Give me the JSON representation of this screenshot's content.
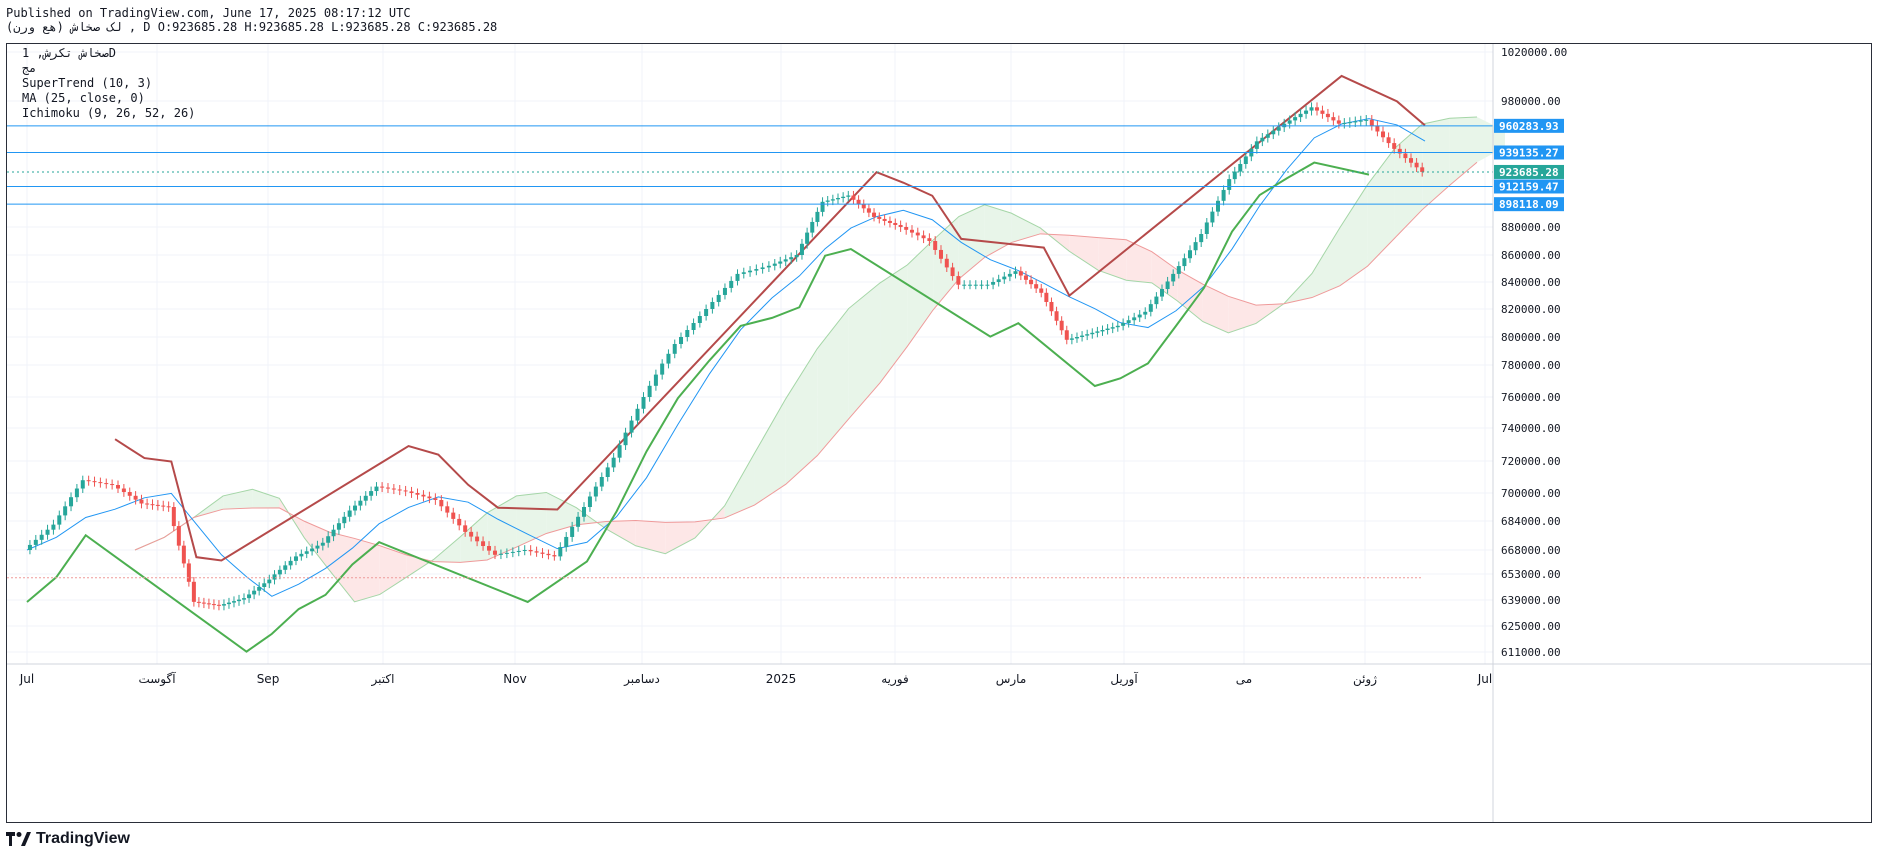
{
  "header": {
    "published": "Published on TradingView.com, June 17, 2025 08:17:12 UTC",
    "ohlc": "لک صخاش (هع ورن) , D O:923685.28 H:923685.28 L:923685.28 C:923685.28"
  },
  "legend": {
    "symbol": "صخاش تکرش, 1D",
    "sub": "مج",
    "supertrend": "SuperTrend (10, 3)",
    "ma": "MA (25, close, 0)",
    "ichimoku": "Ichimoku (9, 26, 52, 26)"
  },
  "brand": {
    "logo_text": "TradingView"
  },
  "colors": {
    "up": "#26a69a",
    "down": "#ef5350",
    "supertrend_up": "#4caf50",
    "supertrend_down": "#b54a4a",
    "ma": "#2196f3",
    "level_line": "#2196f3",
    "cloud_bull": "#e8f5e9",
    "cloud_bear": "#fde7e7",
    "price_label": "#26a69a"
  },
  "chart_data": {
    "type": "candlestick",
    "y_axis": {
      "range": [
        605000,
        1032000
      ],
      "ticks": [
        "1020000.00",
        "980000.00",
        "880000.00",
        "860000.00",
        "840000.00",
        "820000.00",
        "800000.00",
        "780000.00",
        "760000.00",
        "740000.00",
        "720000.00",
        "700000.00",
        "684000.00",
        "668000.00",
        "653000.00",
        "639000.00",
        "625000.00",
        "611000.00"
      ],
      "tick_values": [
        1020000,
        980000,
        880000,
        860000,
        840000,
        820000,
        800000,
        780000,
        760000,
        740000,
        720000,
        700000,
        684000,
        668000,
        653000,
        639000,
        625000,
        611000
      ]
    },
    "x_axis": {
      "labels": [
        "Jul",
        "آگوست",
        "Sep",
        "اکتبر",
        "Nov",
        "دسامبر",
        "2025",
        "فوریه",
        "مارس",
        "آوریل",
        "می",
        "ژوئن",
        "Jul"
      ],
      "dates": [
        "2024-07-01",
        "2024-08-01",
        "2024-09-01",
        "2024-10-01",
        "2024-11-01",
        "2024-12-01",
        "2025-01-01",
        "2025-02-01",
        "2025-03-01",
        "2025-04-01",
        "2025-05-01",
        "2025-06-01",
        "2025-07-01"
      ]
    },
    "horizontal_levels": [
      {
        "value": 960283.93,
        "label": "960283.93"
      },
      {
        "value": 939135.27,
        "label": "939135.27"
      },
      {
        "value": 912159.47,
        "label": "912159.47"
      },
      {
        "value": 898118.09,
        "label": "898118.09"
      }
    ],
    "last_price": {
      "value": 923685.28,
      "label": "923685.28"
    },
    "ichimoku_dotted_level": 651000,
    "closes": [
      {
        "date": "2024-07-01",
        "close": 668000
      },
      {
        "date": "2024-07-08",
        "close": 682000
      },
      {
        "date": "2024-07-15",
        "close": 708000
      },
      {
        "date": "2024-07-22",
        "close": 705000
      },
      {
        "date": "2024-07-29",
        "close": 694000
      },
      {
        "date": "2024-08-05",
        "close": 692000
      },
      {
        "date": "2024-08-12",
        "close": 638000
      },
      {
        "date": "2024-08-19",
        "close": 636000
      },
      {
        "date": "2024-08-26",
        "close": 640000
      },
      {
        "date": "2024-09-02",
        "close": 650000
      },
      {
        "date": "2024-09-09",
        "close": 664000
      },
      {
        "date": "2024-09-16",
        "close": 672000
      },
      {
        "date": "2024-09-23",
        "close": 690000
      },
      {
        "date": "2024-09-30",
        "close": 704000
      },
      {
        "date": "2024-10-07",
        "close": 701000
      },
      {
        "date": "2024-10-14",
        "close": 696000
      },
      {
        "date": "2024-10-21",
        "close": 678000
      },
      {
        "date": "2024-10-28",
        "close": 665000
      },
      {
        "date": "2024-11-04",
        "close": 668000
      },
      {
        "date": "2024-11-11",
        "close": 664000
      },
      {
        "date": "2024-11-18",
        "close": 692000
      },
      {
        "date": "2024-11-25",
        "close": 722000
      },
      {
        "date": "2024-12-02",
        "close": 760000
      },
      {
        "date": "2024-12-09",
        "close": 795000
      },
      {
        "date": "2024-12-16",
        "close": 820000
      },
      {
        "date": "2024-12-23",
        "close": 846000
      },
      {
        "date": "2024-12-30",
        "close": 852000
      },
      {
        "date": "2025-01-06",
        "close": 860000
      },
      {
        "date": "2025-01-13",
        "close": 900000
      },
      {
        "date": "2025-01-20",
        "close": 905000
      },
      {
        "date": "2025-01-27",
        "close": 888000
      },
      {
        "date": "2025-02-03",
        "close": 880000
      },
      {
        "date": "2025-02-10",
        "close": 870000
      },
      {
        "date": "2025-02-17",
        "close": 838000
      },
      {
        "date": "2025-02-24",
        "close": 838000
      },
      {
        "date": "2025-03-03",
        "close": 848000
      },
      {
        "date": "2025-03-10",
        "close": 832000
      },
      {
        "date": "2025-03-17",
        "close": 798000
      },
      {
        "date": "2025-03-24",
        "close": 803000
      },
      {
        "date": "2025-03-31",
        "close": 808000
      },
      {
        "date": "2025-04-07",
        "close": 818000
      },
      {
        "date": "2025-04-14",
        "close": 846000
      },
      {
        "date": "2025-04-21",
        "close": 875000
      },
      {
        "date": "2025-04-28",
        "close": 918000
      },
      {
        "date": "2025-05-05",
        "close": 948000
      },
      {
        "date": "2025-05-12",
        "close": 962000
      },
      {
        "date": "2025-05-19",
        "close": 975000
      },
      {
        "date": "2025-05-26",
        "close": 962000
      },
      {
        "date": "2025-06-02",
        "close": 965000
      },
      {
        "date": "2025-06-09",
        "close": 942000
      },
      {
        "date": "2025-06-16",
        "close": 923685.28
      }
    ]
  }
}
